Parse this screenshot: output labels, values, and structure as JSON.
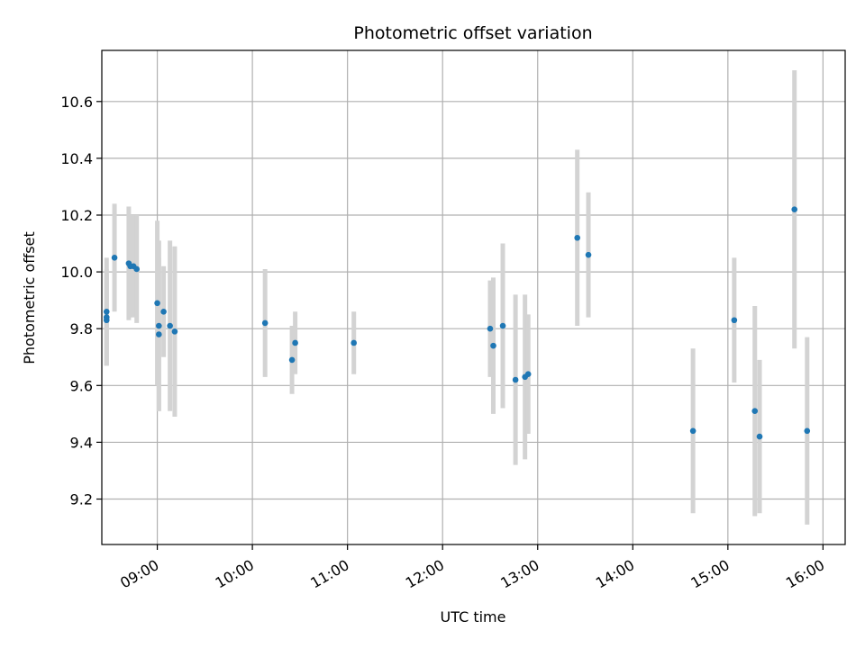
{
  "chart_data": {
    "type": "scatter",
    "title": "Photometric offset variation",
    "xlabel": "UTC time",
    "ylabel": "Photometric offset",
    "x_axis_kind": "time",
    "x_ticks": [
      "09:00",
      "10:00",
      "11:00",
      "12:00",
      "13:00",
      "14:00",
      "15:00",
      "16:00"
    ],
    "y_ticks": [
      "9.2",
      "9.4",
      "9.6",
      "9.8",
      "10.0",
      "10.2",
      "10.4",
      "10.6"
    ],
    "xlim": [
      "08:25",
      "16:14"
    ],
    "ylim": [
      9.04,
      10.78
    ],
    "grid": true,
    "colors": {
      "point": "#1f77b4",
      "errorbar": "#d3d3d3",
      "grid": "#b0b0b0"
    },
    "points": [
      {
        "x": "08:28",
        "y": 9.86,
        "err": 0.19
      },
      {
        "x": "08:28",
        "y": 9.84,
        "err": 0.17
      },
      {
        "x": "08:28",
        "y": 9.83,
        "err": 0.16
      },
      {
        "x": "08:33",
        "y": 10.05,
        "err": 0.19
      },
      {
        "x": "08:42",
        "y": 10.03,
        "err": 0.2
      },
      {
        "x": "08:43",
        "y": 10.02,
        "err": 0.18
      },
      {
        "x": "08:45",
        "y": 10.02,
        "err": 0.18
      },
      {
        "x": "08:47",
        "y": 10.01,
        "err": 0.19
      },
      {
        "x": "09:00",
        "y": 9.89,
        "err": 0.29
      },
      {
        "x": "09:01",
        "y": 9.81,
        "err": 0.3
      },
      {
        "x": "09:01",
        "y": 9.78,
        "err": 0.27
      },
      {
        "x": "09:04",
        "y": 9.86,
        "err": 0.16
      },
      {
        "x": "09:08",
        "y": 9.81,
        "err": 0.3
      },
      {
        "x": "09:11",
        "y": 9.79,
        "err": 0.3
      },
      {
        "x": "10:08",
        "y": 9.82,
        "err": 0.19
      },
      {
        "x": "10:25",
        "y": 9.69,
        "err": 0.12
      },
      {
        "x": "10:27",
        "y": 9.75,
        "err": 0.11
      },
      {
        "x": "11:04",
        "y": 9.75,
        "err": 0.11
      },
      {
        "x": "12:30",
        "y": 9.8,
        "err": 0.17
      },
      {
        "x": "12:32",
        "y": 9.74,
        "err": 0.24
      },
      {
        "x": "12:38",
        "y": 9.81,
        "err": 0.29
      },
      {
        "x": "12:46",
        "y": 9.62,
        "err": 0.3
      },
      {
        "x": "12:52",
        "y": 9.63,
        "err": 0.29
      },
      {
        "x": "12:54",
        "y": 9.64,
        "err": 0.21
      },
      {
        "x": "13:25",
        "y": 10.12,
        "err": 0.31
      },
      {
        "x": "13:32",
        "y": 10.06,
        "err": 0.22
      },
      {
        "x": "14:38",
        "y": 9.44,
        "err": 0.29
      },
      {
        "x": "15:04",
        "y": 9.83,
        "err": 0.22
      },
      {
        "x": "15:17",
        "y": 9.51,
        "err": 0.37
      },
      {
        "x": "15:20",
        "y": 9.42,
        "err": 0.27
      },
      {
        "x": "15:42",
        "y": 10.22,
        "err": 0.49
      },
      {
        "x": "15:50",
        "y": 9.44,
        "err": 0.33
      }
    ]
  }
}
